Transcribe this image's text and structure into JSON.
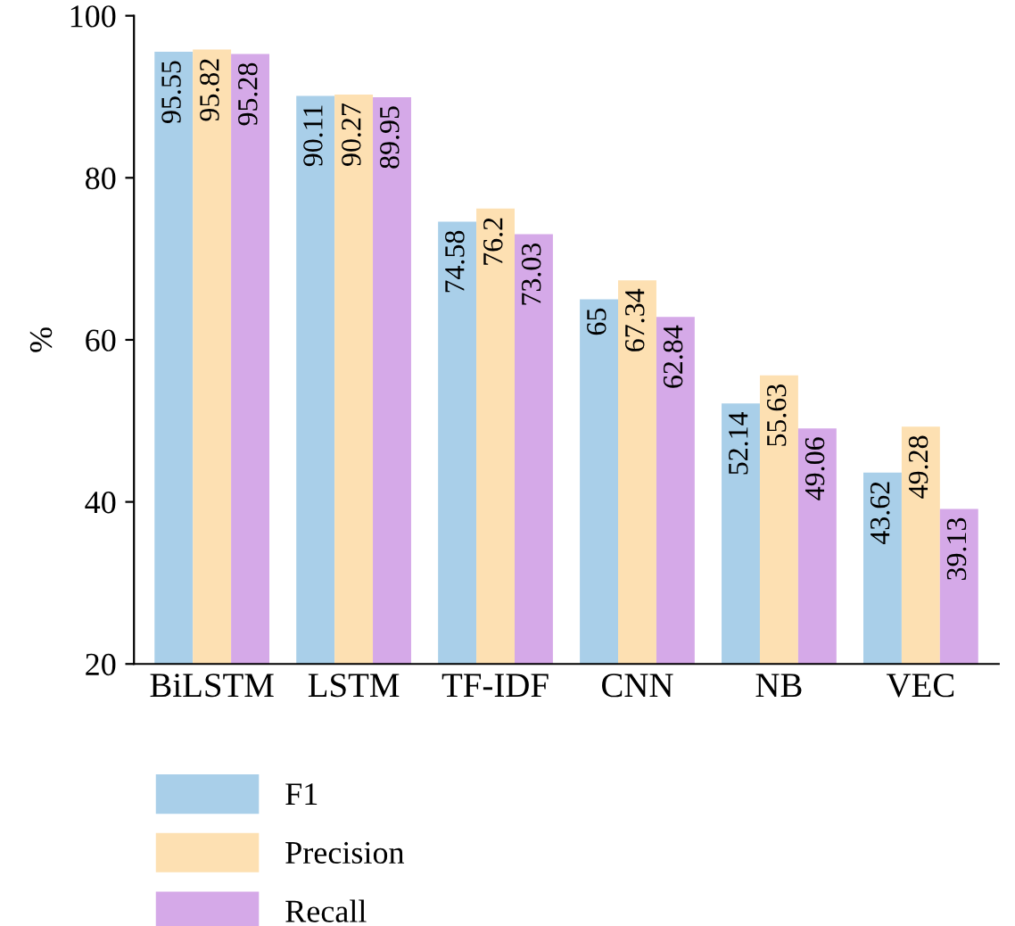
{
  "chart_data": {
    "type": "bar",
    "ylabel": "%",
    "categories": [
      "BiLSTM",
      "LSTM",
      "TF-IDF",
      "CNN",
      "NB",
      "VEC"
    ],
    "series": [
      {
        "name": "F1",
        "color": "#a9cfe9",
        "values": [
          95.55,
          90.11,
          74.58,
          65,
          52.14,
          43.62
        ]
      },
      {
        "name": "Precision",
        "color": "#fde0b2",
        "values": [
          95.82,
          90.27,
          76.2,
          67.34,
          55.63,
          49.28
        ]
      },
      {
        "name": "Recall",
        "color": "#d5a9e8",
        "values": [
          95.28,
          89.95,
          73.03,
          62.84,
          49.06,
          39.13
        ]
      }
    ],
    "ylim": [
      20,
      100
    ],
    "yticks": [
      20,
      40,
      60,
      80,
      100
    ],
    "data_labels": true,
    "legend": "bottom",
    "grid": false
  }
}
